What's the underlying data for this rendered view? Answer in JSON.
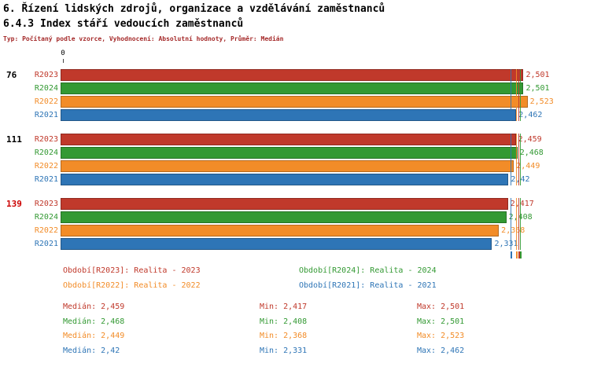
{
  "header": {
    "title1": "6. Řízení lidských zdrojů, organizace a vzdělávání zaměstnanců",
    "title2": "6.4.3 Index stáří vedoucích zaměstnanců",
    "subtitle": "Typ: Počítaný podle vzorce, Vyhodnocení: Absolutní hodnoty, Průměr: Medián"
  },
  "colors": {
    "R2023": "#C0392B",
    "R2024": "#339933",
    "R2022": "#F28C28",
    "R2021": "#2E75B6",
    "group_label": "#000000",
    "group_label_alert": "#CC0000",
    "subtitle": "#A52A2A"
  },
  "chart_data": {
    "type": "bar",
    "orientation": "horizontal",
    "x_axis": {
      "zero_label": "0",
      "min": 0,
      "max": 2.55
    },
    "series_order": [
      "R2023",
      "R2024",
      "R2022",
      "R2021"
    ],
    "groups": [
      {
        "label": "76",
        "label_alert": false,
        "bars": [
          {
            "series": "R2023",
            "value": 2.501,
            "value_label": "2,501"
          },
          {
            "series": "R2024",
            "value": 2.501,
            "value_label": "2,501"
          },
          {
            "series": "R2022",
            "value": 2.523,
            "value_label": "2,523"
          },
          {
            "series": "R2021",
            "value": 2.462,
            "value_label": "2,462"
          }
        ]
      },
      {
        "label": "111",
        "label_alert": false,
        "bars": [
          {
            "series": "R2023",
            "value": 2.459,
            "value_label": "2,459"
          },
          {
            "series": "R2024",
            "value": 2.468,
            "value_label": "2,468"
          },
          {
            "series": "R2022",
            "value": 2.449,
            "value_label": "2,449"
          },
          {
            "series": "R2021",
            "value": 2.42,
            "value_label": "2,42"
          }
        ]
      },
      {
        "label": "139",
        "label_alert": true,
        "bars": [
          {
            "series": "R2023",
            "value": 2.417,
            "value_label": "2,417"
          },
          {
            "series": "R2024",
            "value": 2.408,
            "value_label": "2,408"
          },
          {
            "series": "R2022",
            "value": 2.368,
            "value_label": "2,368"
          },
          {
            "series": "R2021",
            "value": 2.331,
            "value_label": "2,331"
          }
        ]
      }
    ],
    "median_markers": {
      "R2023": 2.459,
      "R2024": 2.468,
      "R2022": 2.449,
      "R2021": 2.42
    }
  },
  "legend": {
    "items": [
      {
        "series": "R2023",
        "text": "Období[R2023]: Realita - 2023"
      },
      {
        "series": "R2024",
        "text": "Období[R2024]: Realita - 2024"
      },
      {
        "series": "R2022",
        "text": "Období[R2022]: Realita - 2022"
      },
      {
        "series": "R2021",
        "text": "Období[R2021]: Realita - 2021"
      }
    ]
  },
  "stats": {
    "rows": [
      {
        "series": "R2023",
        "median": "Medián: 2,459",
        "min": "Min: 2,417",
        "max": "Max: 2,501"
      },
      {
        "series": "R2024",
        "median": "Medián: 2,468",
        "min": "Min: 2,408",
        "max": "Max: 2,501"
      },
      {
        "series": "R2022",
        "median": "Medián: 2,449",
        "min": "Min: 2,368",
        "max": "Max: 2,523"
      },
      {
        "series": "R2021",
        "median": "Medián: 2,42",
        "min": "Min: 2,331",
        "max": "Max: 2,462"
      }
    ]
  }
}
